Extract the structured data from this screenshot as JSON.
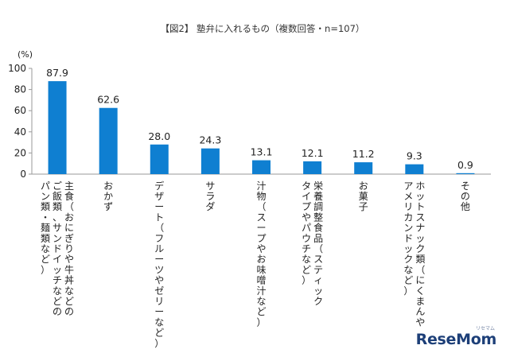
{
  "chart_data": {
    "type": "bar",
    "title": "【図2】 塾弁に入れるもの（複数回答・n=107）",
    "ylabel": "(%)",
    "ylim": [
      0,
      100
    ],
    "yticks": [
      0,
      20,
      40,
      60,
      80,
      100
    ],
    "grid": false,
    "color": "#0f7fd1",
    "categories": [
      "主食（おにぎりや牛丼などのご飯類、サンドイッチなどのパン類・麺類など）",
      "おかず",
      "デザート（フルーツやゼリーなど）",
      "サラダ",
      "汁物（スープやお味噌汁など）",
      "栄養調整食品（スティックタイプやパウチなど）",
      "お菓子",
      "ホットスナック類（にくまんやアメリカンドックなど）",
      "その他"
    ],
    "category_lines": [
      [
        "主食（おにぎりや牛丼などの",
        "ご飯類、サンドイッチなどの",
        "パン類・麺類など）"
      ],
      [
        "おかず"
      ],
      [
        "デザート（フルーツやゼリーなど）"
      ],
      [
        "サラダ"
      ],
      [
        "汁物（スープやお味噌汁など）"
      ],
      [
        "栄養調整食品（スティック",
        "タイプやパウチなど）"
      ],
      [
        "お菓子"
      ],
      [
        "ホットスナック類（にくまんや",
        "アメリカンドックなど）"
      ],
      [
        "その他"
      ]
    ],
    "values": [
      87.9,
      62.6,
      28.0,
      24.3,
      13.1,
      12.1,
      11.2,
      9.3,
      0.9
    ],
    "value_labels": [
      "87.9",
      "62.6",
      "28.0",
      "24.3",
      "13.1",
      "12.1",
      "11.2",
      "9.3",
      "0.9"
    ]
  },
  "watermark": {
    "brand": "ReseMom",
    "sub": "リセマム"
  }
}
